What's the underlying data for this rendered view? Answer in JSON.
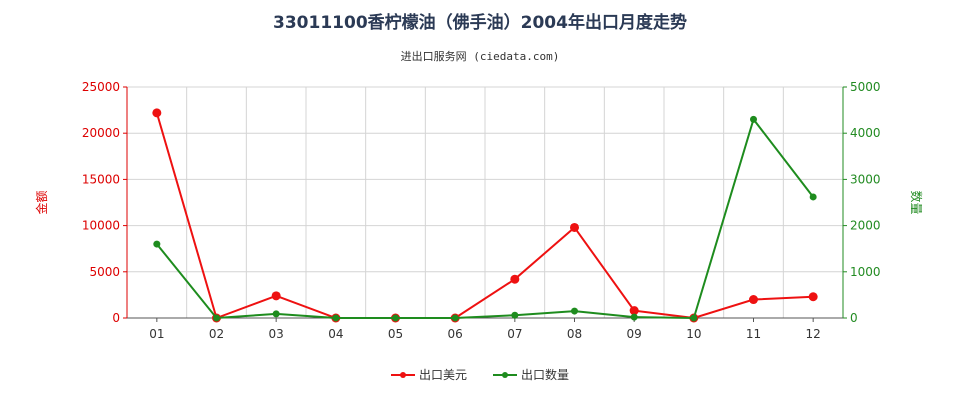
{
  "chart_data": {
    "type": "line",
    "title": "33011100香柠檬油（佛手油）2004年出口月度走势",
    "subtitle": "进出口服务网 (ciedata.com)",
    "categories": [
      "01",
      "02",
      "03",
      "04",
      "05",
      "06",
      "07",
      "08",
      "09",
      "10",
      "11",
      "12"
    ],
    "y_left": {
      "label": "金额",
      "ticks": [
        "0",
        "5000",
        "10000",
        "15000",
        "20000",
        "25000"
      ],
      "range": [
        0,
        25000
      ],
      "color": "#dd0000"
    },
    "y_right": {
      "label": "数量",
      "ticks": [
        "0",
        "1000",
        "2000",
        "3000",
        "4000",
        "5000"
      ],
      "range": [
        0,
        5000
      ],
      "color": "#228b22"
    },
    "series": [
      {
        "name": "出口美元",
        "axis": "left",
        "color": "#ee1111",
        "values": [
          22200,
          0,
          2400,
          0,
          0,
          0,
          4200,
          9800,
          800,
          0,
          2000,
          2300
        ]
      },
      {
        "name": "出口数量",
        "axis": "right",
        "color": "#1e8c1e",
        "values": [
          1600,
          0,
          90,
          0,
          0,
          0,
          60,
          150,
          20,
          0,
          4300,
          2620
        ]
      }
    ],
    "grid": true,
    "legend_position": "bottom"
  }
}
